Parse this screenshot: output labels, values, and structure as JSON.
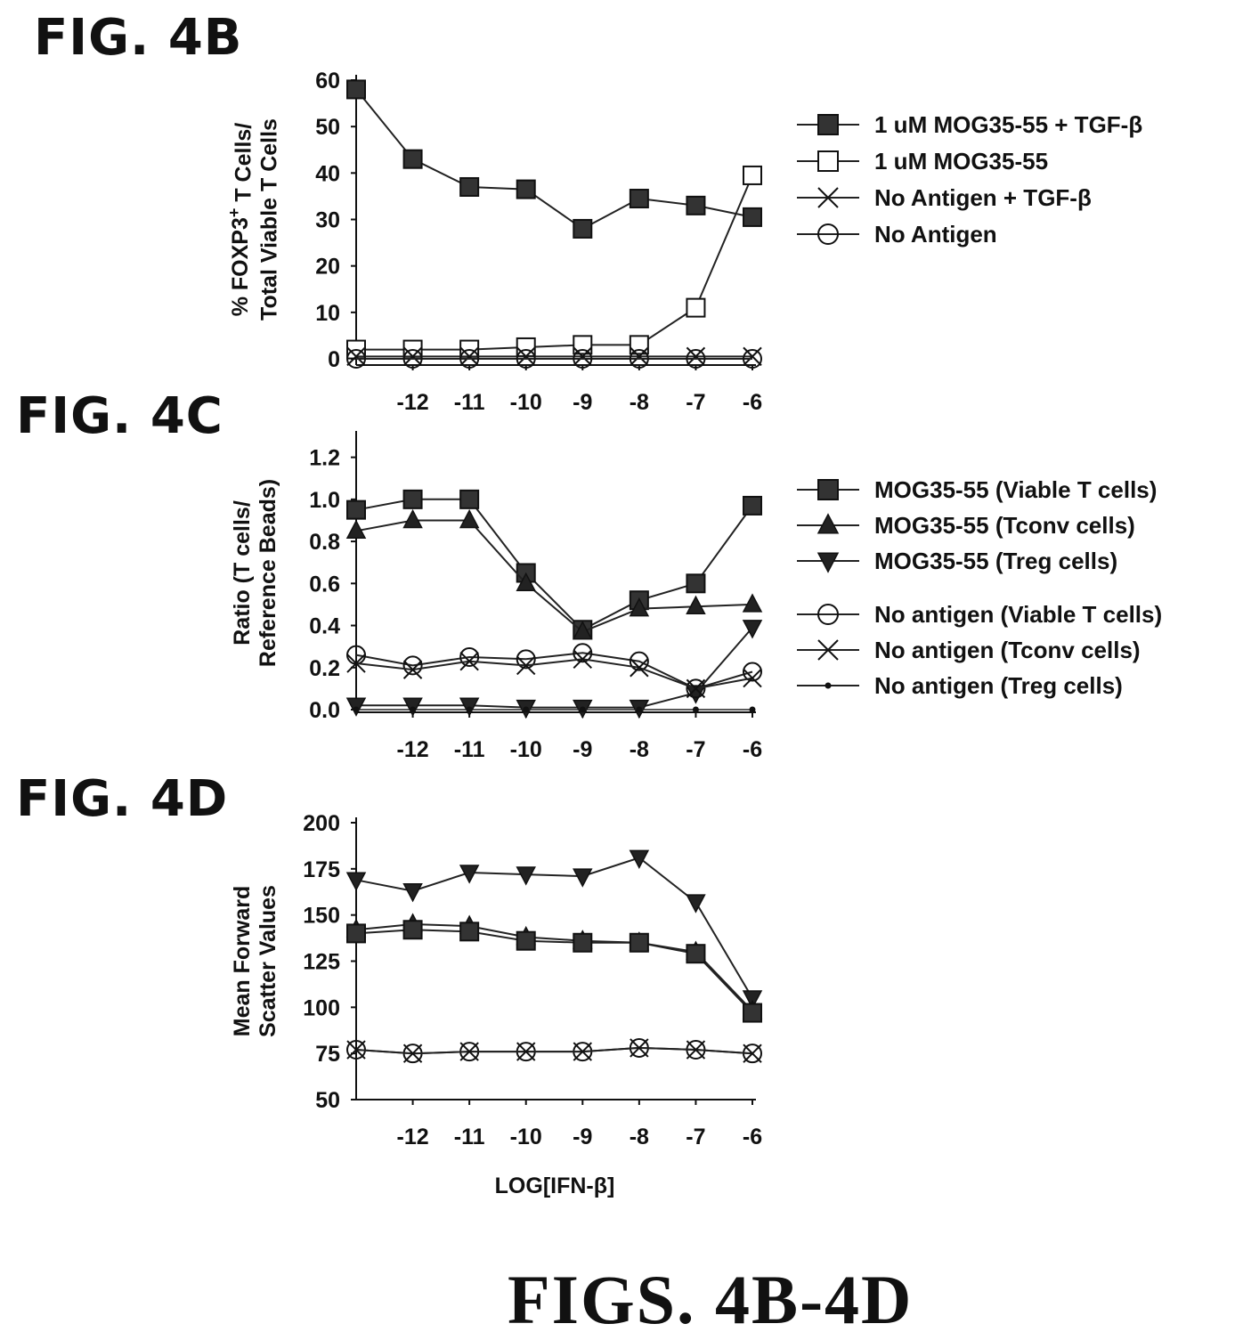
{
  "figure": {
    "labels": [
      "FIG. 4B",
      "FIG. 4C",
      "FIG. 4D"
    ],
    "footer": "FIGS. 4B-4D"
  },
  "chart_data": [
    {
      "type": "line",
      "panel": "FIG. 4B",
      "ylabel_lines": [
        "% FOXP3",
        "+",
        " T Cells/",
        "Total Viable T Cells"
      ],
      "xlabel": "",
      "x": [
        -13,
        -12,
        -11,
        -10,
        -9,
        -8,
        -7,
        -6
      ],
      "xticks": [
        -12,
        -11,
        -10,
        -9,
        -8,
        -7,
        -6
      ],
      "ylim": [
        0,
        60
      ],
      "yticks": [
        0,
        10,
        20,
        30,
        40,
        50,
        60
      ],
      "legend_placement": "right",
      "series": [
        {
          "name": "1 uM MOG35-55 + TGF-β",
          "marker": "square-filled",
          "values": [
            58,
            43,
            37,
            36.5,
            28,
            34.5,
            33,
            30.5
          ]
        },
        {
          "name": "1 uM MOG35-55",
          "marker": "square-open",
          "values": [
            2,
            2,
            2,
            2.5,
            3,
            3,
            11,
            39.5
          ]
        },
        {
          "name": "No Antigen + TGF-β",
          "marker": "x",
          "values": [
            0.5,
            0.5,
            0.5,
            0.5,
            0.5,
            0.5,
            0.5,
            0.5
          ]
        },
        {
          "name": "No Antigen",
          "marker": "circle-open",
          "values": [
            0,
            0,
            0,
            0,
            0,
            0,
            0,
            0
          ]
        }
      ]
    },
    {
      "type": "line",
      "panel": "FIG. 4C",
      "ylabel_lines": [
        "Ratio (T cells/",
        "Reference Beads)"
      ],
      "xlabel": "",
      "x": [
        -13,
        -12,
        -11,
        -10,
        -9,
        -8,
        -7,
        -6
      ],
      "xticks": [
        -12,
        -11,
        -10,
        -9,
        -8,
        -7,
        -6
      ],
      "ylim": [
        0,
        1.3
      ],
      "yticks": [
        0.0,
        0.2,
        0.4,
        0.6,
        0.8,
        1.0,
        1.2
      ],
      "ytick_labels": [
        "0.0",
        "0.2",
        "0.4",
        "0.6",
        "0.8",
        "1.0",
        "1.2"
      ],
      "legend_placement": "right",
      "series": [
        {
          "name": "MOG35-55 (Viable T cells)",
          "marker": "square-filled",
          "values": [
            0.95,
            1.0,
            1.0,
            0.65,
            0.38,
            0.52,
            0.6,
            0.97
          ]
        },
        {
          "name": "MOG35-55 (Tconv cells)",
          "marker": "triangle-up",
          "values": [
            0.85,
            0.9,
            0.9,
            0.6,
            0.37,
            0.48,
            0.49,
            0.5
          ]
        },
        {
          "name": "MOG35-55 (Treg cells)",
          "marker": "triangle-down",
          "values": [
            0.02,
            0.02,
            0.02,
            0.01,
            0.01,
            0.01,
            0.08,
            0.39
          ]
        },
        {
          "name": "No antigen (Viable T cells)",
          "marker": "circle-open",
          "values": [
            0.26,
            0.21,
            0.25,
            0.24,
            0.27,
            0.23,
            0.1,
            0.18
          ]
        },
        {
          "name": "No antigen (Tconv cells)",
          "marker": "x",
          "values": [
            0.22,
            0.19,
            0.23,
            0.21,
            0.24,
            0.2,
            0.1,
            0.15
          ]
        },
        {
          "name": "No antigen (Treg cells)",
          "marker": "dot",
          "values": [
            0.0,
            0.0,
            0.0,
            0.0,
            0.0,
            0.0,
            0.0,
            0.0
          ]
        }
      ]
    },
    {
      "type": "line",
      "panel": "FIG. 4D",
      "ylabel_lines": [
        "Mean Forward",
        "Scatter Values"
      ],
      "xlabel": "LOG[IFN-β]",
      "x": [
        -13,
        -12,
        -11,
        -10,
        -9,
        -8,
        -7,
        -6
      ],
      "xticks": [
        -12,
        -11,
        -10,
        -9,
        -8,
        -7,
        -6
      ],
      "ylim": [
        50,
        200
      ],
      "yticks": [
        50,
        75,
        100,
        125,
        150,
        175,
        200
      ],
      "legend_placement": "none",
      "series": [
        {
          "marker": "triangle-down",
          "values": [
            169,
            163,
            173,
            172,
            171,
            181,
            157,
            105
          ]
        },
        {
          "marker": "triangle-up",
          "values": [
            142,
            145,
            144,
            138,
            136,
            135,
            130,
            98
          ]
        },
        {
          "marker": "square-filled",
          "values": [
            140,
            142,
            141,
            136,
            135,
            135,
            129,
            97
          ]
        },
        {
          "marker": "circle-open",
          "values": [
            77,
            75,
            76,
            76,
            76,
            78,
            77,
            75
          ]
        },
        {
          "marker": "x",
          "values": [
            77,
            75,
            76,
            76,
            76,
            78,
            77,
            75
          ]
        }
      ]
    }
  ]
}
